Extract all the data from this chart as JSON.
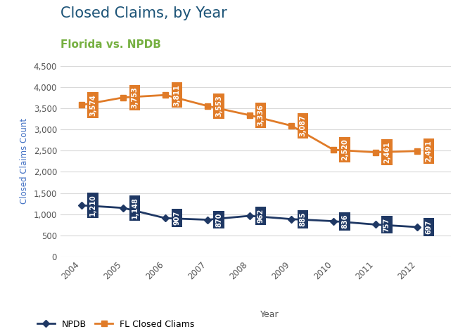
{
  "title": "Closed Claims, by Year",
  "subtitle": "Florida vs. NPDB",
  "title_color": "#1a5276",
  "subtitle_color": "#76b041",
  "xlabel": "Year",
  "ylabel": "Closed Claims Count",
  "years": [
    2004,
    2005,
    2006,
    2007,
    2008,
    2009,
    2010,
    2011,
    2012
  ],
  "npdb": [
    1210,
    1148,
    907,
    870,
    962,
    885,
    836,
    757,
    697
  ],
  "fl": [
    3574,
    3753,
    3811,
    3553,
    3336,
    3087,
    2520,
    2461,
    2491
  ],
  "npdb_color": "#1f3864",
  "fl_color": "#e07b28",
  "npdb_label": "NPDB",
  "fl_label": "FL Closed Cliams",
  "ylim": [
    0,
    4500
  ],
  "yticks": [
    0,
    500,
    1000,
    1500,
    2000,
    2500,
    3000,
    3500,
    4000,
    4500
  ],
  "background_color": "#ffffff",
  "grid_color": "#d9d9d9",
  "ylabel_color": "#4472c4"
}
